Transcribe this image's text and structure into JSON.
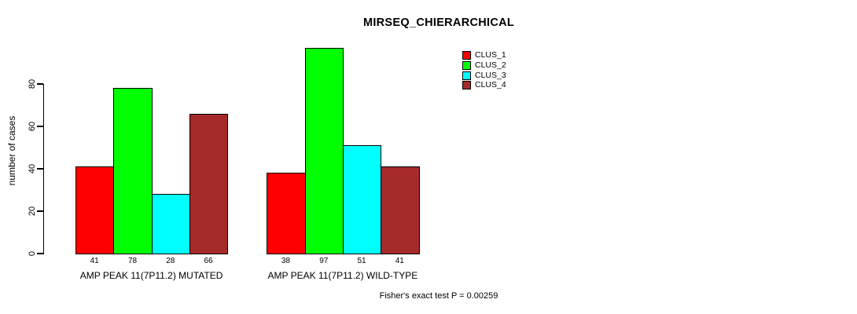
{
  "chart_data": {
    "type": "bar",
    "title": "MIRSEQ_CHIERARCHICAL",
    "ylabel": "number of cases",
    "xlabel": "",
    "yticks": [
      0,
      20,
      40,
      60,
      80
    ],
    "ylim": [
      0,
      100
    ],
    "grid": false,
    "legend_position": "top-right",
    "bar_value_labels": true,
    "categories": [
      "AMP PEAK 11(7P11.2) MUTATED",
      "AMP PEAK 11(7P11.2) WILD-TYPE"
    ],
    "series": [
      {
        "name": "CLUS_1",
        "color": "#FF0000",
        "values": [
          41,
          38
        ]
      },
      {
        "name": "CLUS_2",
        "color": "#00FF00",
        "values": [
          78,
          97
        ]
      },
      {
        "name": "CLUS_3",
        "color": "#00FFFF",
        "values": [
          28,
          51
        ]
      },
      {
        "name": "CLUS_4",
        "color": "#A52A2A",
        "values": [
          66,
          41
        ]
      }
    ],
    "annotation": "Fisher's exact test P = 0.00259"
  }
}
